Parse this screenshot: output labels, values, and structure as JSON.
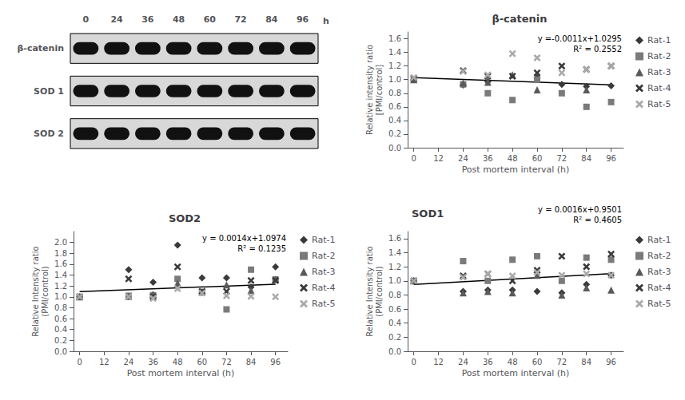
{
  "chart_data": [
    {
      "type": "blot",
      "categories": [
        "0",
        "24",
        "36",
        "48",
        "60",
        "72",
        "84",
        "96"
      ],
      "y_categories": [
        "β-catenin",
        "SOD 1",
        "SOD 2"
      ],
      "annotations": [
        "h"
      ],
      "color": "#111111"
    },
    {
      "type": "scatter",
      "title": "β-catenin",
      "xlabel": "Post mortem interval (h)",
      "ylabel": "Relative intensity ratio\n[PMI/control]",
      "xlim": [
        -3,
        102
      ],
      "xticks": [
        0,
        12,
        24,
        36,
        48,
        60,
        72,
        84,
        96
      ],
      "ylim": [
        0,
        1.7
      ],
      "yticks": [
        {
          "value": 0,
          "label": "0.0"
        },
        0.2,
        0.4,
        0.6,
        0.8,
        {
          "value": 1.0,
          "label": "1.0"
        },
        1.2,
        1.4,
        1.6
      ],
      "grid": false,
      "legend": "right",
      "annotations": [
        "y =-0.0011x+1.0295",
        "R² = 0.2552"
      ],
      "series": [
        {
          "name": "Rat-1",
          "color": "#3a3a3a",
          "marker": "diamond",
          "x": [
            0,
            24,
            36,
            60,
            72,
            84,
            96
          ],
          "values": [
            1.0,
            0.92,
            0.97,
            1.03,
            0.93,
            0.9,
            0.91
          ]
        },
        {
          "name": "Rat-2",
          "color": "#7a7a7a",
          "marker": "square",
          "x": [
            0,
            24,
            36,
            48,
            60,
            72,
            84,
            96
          ],
          "values": [
            1.0,
            0.93,
            0.8,
            0.7,
            1.0,
            0.8,
            0.6,
            0.67
          ]
        },
        {
          "name": "Rat-3",
          "color": "#5a5a5a",
          "marker": "triangle",
          "x": [
            0,
            24,
            36,
            48,
            60,
            84
          ],
          "values": [
            1.0,
            0.95,
            0.96,
            1.07,
            0.85,
            0.85
          ]
        },
        {
          "name": "Rat-4",
          "color": "#3a3a3a",
          "marker": "x",
          "x": [
            0,
            24,
            36,
            48,
            60,
            72,
            84,
            96
          ],
          "values": [
            1.02,
            1.13,
            1.05,
            1.05,
            1.1,
            1.2,
            1.15,
            1.2
          ]
        },
        {
          "name": "Rat-5",
          "color": "#aaaaaa",
          "marker": "x",
          "x": [
            0,
            24,
            36,
            48,
            60,
            72,
            84,
            96
          ],
          "values": [
            1.03,
            1.12,
            1.07,
            1.38,
            1.32,
            1.1,
            1.15,
            1.2
          ]
        },
        {
          "type": "line",
          "color": "#000000",
          "x": [
            0,
            96
          ],
          "values": [
            1.0295,
            0.9239
          ]
        }
      ]
    },
    {
      "type": "scatter",
      "title": "SOD2",
      "xlabel": "Post mortem interval (h)",
      "ylabel": "Relative Intensity ratio\n(PMI/control)",
      "xlim": [
        -3,
        102
      ],
      "xticks": [
        0,
        12,
        24,
        36,
        48,
        60,
        72,
        84,
        96
      ],
      "ylim": [
        0,
        2.2
      ],
      "yticks": [
        {
          "value": 0,
          "label": "0.0"
        },
        0.2,
        0.4,
        0.6,
        0.8,
        {
          "value": 1.0,
          "label": "1.0"
        },
        1.2,
        1.4,
        1.6,
        1.8,
        {
          "value": 2.0,
          "label": "2.0"
        }
      ],
      "grid": false,
      "legend": "right",
      "annotations": [
        "y = 0.0014x+1.0974",
        "R² = 0.1235"
      ],
      "series": [
        {
          "name": "Rat-1",
          "color": "#3a3a3a",
          "marker": "diamond",
          "x": [
            0,
            24,
            36,
            48,
            60,
            72,
            84,
            96
          ],
          "values": [
            1.0,
            1.5,
            1.27,
            1.95,
            1.35,
            1.35,
            1.18,
            1.55
          ]
        },
        {
          "name": "Rat-2",
          "color": "#7a7a7a",
          "marker": "square",
          "x": [
            0,
            24,
            36,
            48,
            60,
            72,
            84,
            96
          ],
          "values": [
            1.0,
            1.02,
            1.03,
            1.33,
            1.08,
            0.77,
            1.5,
            1.32
          ]
        },
        {
          "name": "Rat-3",
          "color": "#5a5a5a",
          "marker": "triangle",
          "x": [
            0,
            24,
            36,
            48,
            60,
            72,
            84,
            96
          ],
          "values": [
            1.0,
            1.01,
            1.05,
            1.25,
            1.1,
            1.22,
            1.12,
            1.32
          ]
        },
        {
          "name": "Rat-4",
          "color": "#3a3a3a",
          "marker": "x",
          "x": [
            0,
            24,
            36,
            48,
            60,
            72,
            84,
            96
          ],
          "values": [
            1.0,
            1.33,
            1.0,
            1.55,
            1.1,
            1.1,
            1.3,
            1.3
          ]
        },
        {
          "name": "Rat-5",
          "color": "#aaaaaa",
          "marker": "x",
          "x": [
            0,
            24,
            36,
            48,
            60,
            72,
            84,
            96
          ],
          "values": [
            1.0,
            1.0,
            0.97,
            1.15,
            1.07,
            1.02,
            1.01,
            1.0
          ]
        },
        {
          "type": "line",
          "color": "#000000",
          "x": [
            0,
            96
          ],
          "values": [
            1.0974,
            1.2318
          ]
        }
      ]
    },
    {
      "type": "scatter",
      "title": "SOD1",
      "xlabel": "Post mortem interval (h)",
      "ylabel": "Relative Intensity ratio\n(PMI/control)",
      "xlim": [
        -3,
        102
      ],
      "xticks": [
        0,
        12,
        24,
        36,
        48,
        60,
        72,
        84,
        96
      ],
      "ylim": [
        0,
        1.7
      ],
      "yticks": [
        {
          "value": 0,
          "label": "0.0"
        },
        0.2,
        0.4,
        0.6,
        0.8,
        {
          "value": 1.0,
          "label": "1.0"
        },
        1.2,
        1.4,
        1.6
      ],
      "grid": false,
      "legend": "right",
      "annotations": [
        "y = 0.0016x+0.9501",
        "R² = 0.4605"
      ],
      "series": [
        {
          "name": "Rat-1",
          "color": "#3a3a3a",
          "marker": "diamond",
          "x": [
            0,
            24,
            36,
            48,
            60,
            72,
            84,
            96
          ],
          "values": [
            1.0,
            0.85,
            0.87,
            0.87,
            0.85,
            0.83,
            0.95,
            1.08
          ]
        },
        {
          "name": "Rat-2",
          "color": "#7a7a7a",
          "marker": "square",
          "x": [
            0,
            24,
            36,
            48,
            60,
            72,
            84,
            96
          ],
          "values": [
            1.0,
            1.28,
            1.0,
            1.3,
            1.35,
            1.0,
            1.33,
            1.3
          ]
        },
        {
          "name": "Rat-3",
          "color": "#5a5a5a",
          "marker": "triangle",
          "x": [
            0,
            24,
            36,
            48,
            60,
            72,
            84,
            96
          ],
          "values": [
            1.0,
            0.83,
            0.85,
            0.83,
            1.08,
            0.8,
            0.9,
            0.87
          ]
        },
        {
          "name": "Rat-4",
          "color": "#3a3a3a",
          "marker": "x",
          "x": [
            0,
            24,
            36,
            48,
            60,
            72,
            84,
            96
          ],
          "values": [
            1.0,
            1.07,
            1.1,
            1.0,
            1.15,
            1.35,
            1.2,
            1.38
          ]
        },
        {
          "name": "Rat-5",
          "color": "#aaaaaa",
          "marker": "x",
          "x": [
            0,
            24,
            36,
            48,
            60,
            72,
            84,
            96
          ],
          "values": [
            1.0,
            1.05,
            1.1,
            1.07,
            1.12,
            1.08,
            1.1,
            1.08
          ]
        },
        {
          "type": "line",
          "color": "#000000",
          "x": [
            0,
            96
          ],
          "values": [
            0.9501,
            1.1037
          ]
        }
      ]
    }
  ]
}
